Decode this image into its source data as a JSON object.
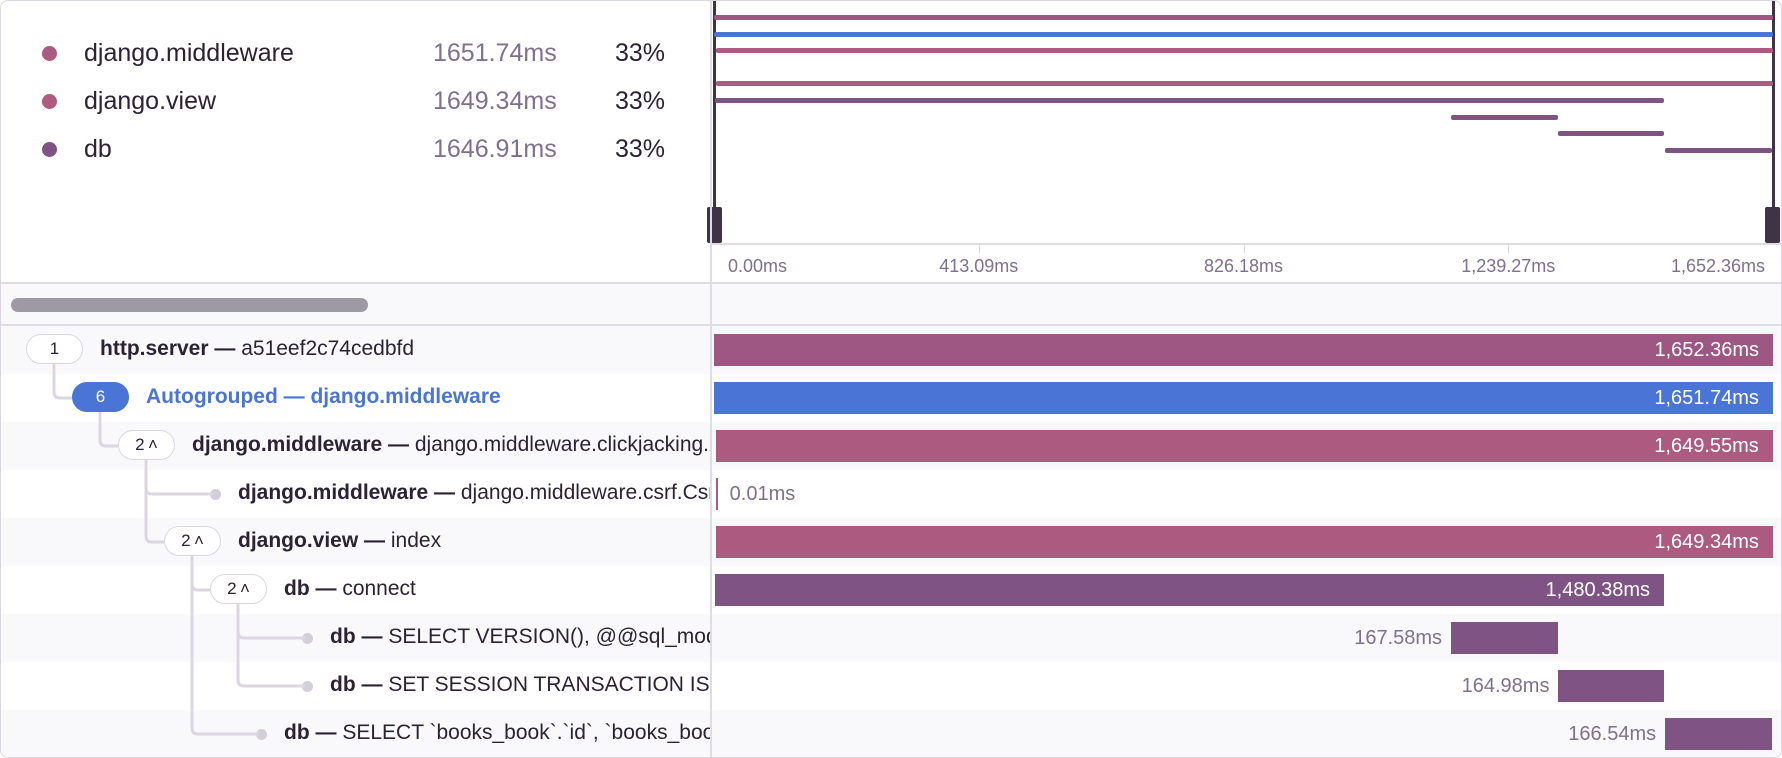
{
  "legend": [
    {
      "name": "django.middleware",
      "duration": "1651.74ms",
      "percent": "33%",
      "color": "#ad5a80"
    },
    {
      "name": "django.view",
      "duration": "1649.34ms",
      "percent": "33%",
      "color": "#b05a80"
    },
    {
      "name": "db",
      "duration": "1646.91ms",
      "percent": "33%",
      "color": "#805385"
    }
  ],
  "timeline": {
    "total_ms": 1652.36,
    "ticks": [
      {
        "value": 0,
        "label": "0.00ms"
      },
      {
        "value": 413.09,
        "label": "413.09ms"
      },
      {
        "value": 826.18,
        "label": "826.18ms"
      },
      {
        "value": 1239.27,
        "label": "1,239.27ms"
      },
      {
        "value": 1652.36,
        "label": "1,652.36ms"
      }
    ]
  },
  "rows": [
    {
      "level": 0,
      "badge": "1",
      "op": "http.server",
      "sep": " — ",
      "desc": "a51eef2c74cedbfd",
      "start_ms": 0,
      "duration_ms": 1652.36,
      "duration_label": "1,652.36ms",
      "color": "#9e5682"
    },
    {
      "level": 1,
      "badge": "6",
      "badge_style": "blue",
      "op": "Autogrouped",
      "sep": " — ",
      "desc": "django.middleware",
      "autogroup": true,
      "start_ms": 0.4,
      "duration_ms": 1651.74,
      "duration_label": "1,651.74ms",
      "color": "#4a74d6"
    },
    {
      "level": 2,
      "badge": "2 ^",
      "op": "django.middleware",
      "sep": " — ",
      "desc": "django.middleware.clickjacking.XFrameOptionsMiddleware.__call__",
      "start_ms": 2.5,
      "duration_ms": 1649.55,
      "duration_label": "1,649.55ms",
      "color": "#ad5a80"
    },
    {
      "level": 3,
      "leaf": true,
      "op": "django.middleware",
      "sep": " — ",
      "desc": "django.middleware.csrf.CsrfViewMiddleware.process_view",
      "start_ms": 2.6,
      "duration_ms": 0.01,
      "duration_label": "0.01ms",
      "color": "#ad5a80"
    },
    {
      "level": 3,
      "badge": "2 ^",
      "op": "django.view",
      "sep": " — ",
      "desc": "index",
      "start_ms": 2.8,
      "duration_ms": 1649.34,
      "duration_label": "1,649.34ms",
      "color": "#ad5a80"
    },
    {
      "level": 4,
      "badge": "2 ^",
      "op": "db",
      "sep": " — ",
      "desc": "connect",
      "start_ms": 2.0,
      "duration_ms": 1480.38,
      "duration_label": "1,480.38ms",
      "color": "#805385"
    },
    {
      "level": 5,
      "leaf": true,
      "op": "db",
      "sep": " — ",
      "desc": "SELECT VERSION(), @@sql_mode",
      "start_ms": 1150.0,
      "duration_ms": 167.58,
      "duration_label": "167.58ms",
      "color": "#805385"
    },
    {
      "level": 5,
      "leaf": true,
      "op": "db",
      "sep": " — ",
      "desc": "SET SESSION TRANSACTION ISOLATION LEVEL READ COMMITTED",
      "start_ms": 1317.6,
      "duration_ms": 164.98,
      "duration_label": "164.98ms",
      "color": "#805385"
    },
    {
      "level": 4,
      "leaf": true,
      "op": "db",
      "sep": " — ",
      "desc": "SELECT `books_book`.`id`, `books_book`.`title`",
      "start_ms": 1484.0,
      "duration_ms": 166.54,
      "duration_label": "166.54ms",
      "color": "#805385"
    }
  ]
}
